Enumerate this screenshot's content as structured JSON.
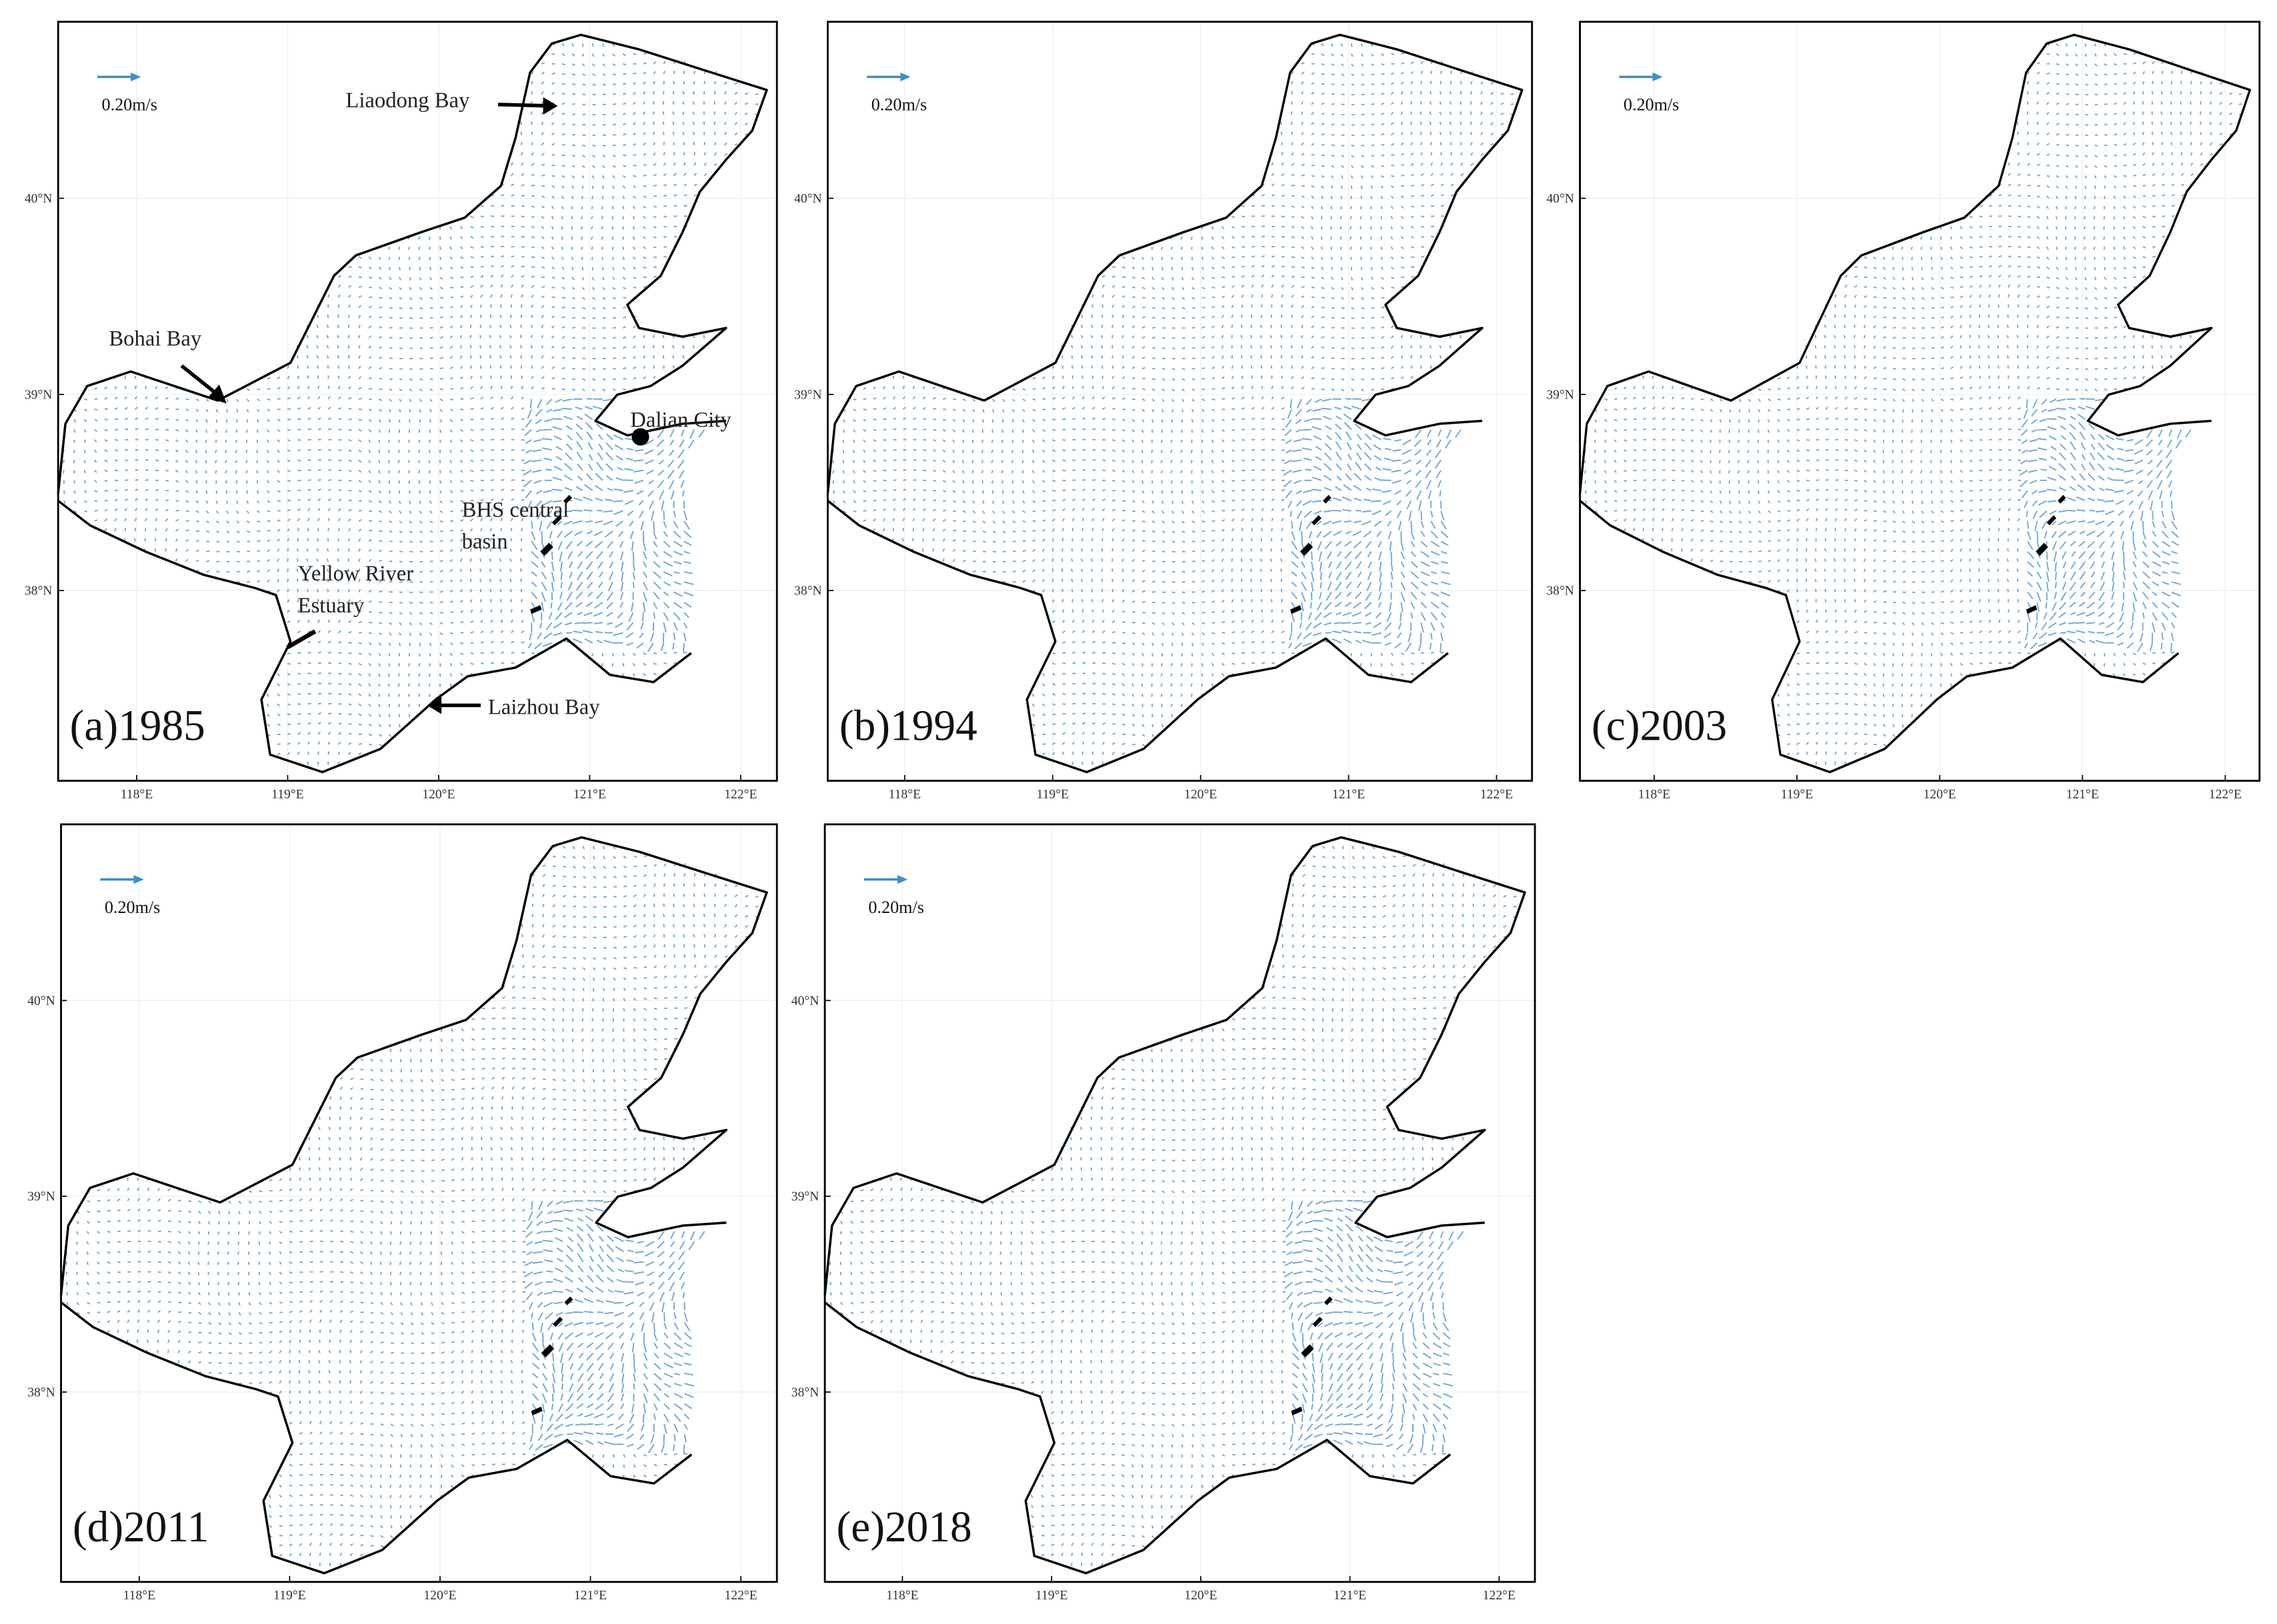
{
  "panels": [
    {
      "label": "(a)1985",
      "scale": "0.20m/s"
    },
    {
      "label": "(b)1994",
      "scale": "0.20m/s"
    },
    {
      "label": "(c)2003",
      "scale": "0.20m/s"
    },
    {
      "label": "(d)2011",
      "scale": "0.20m/s"
    },
    {
      "label": "(e)2018",
      "scale": "0.20m/s"
    }
  ],
  "xticks": [
    {
      "value": 118,
      "label": "118°E"
    },
    {
      "value": 119,
      "label": "119°E"
    },
    {
      "value": 120,
      "label": "120°E"
    },
    {
      "value": 121,
      "label": "121°E"
    },
    {
      "value": 122,
      "label": "122°E"
    }
  ],
  "yticks": [
    {
      "value": 38,
      "label": "38°N"
    },
    {
      "value": 39,
      "label": "39°N"
    },
    {
      "value": 40,
      "label": "40°N"
    }
  ],
  "annotations": {
    "liaodong_bay": "Liaodong Bay",
    "bohai_bay": "Bohai Bay",
    "dalian_city": "Dalian City",
    "bhs_central_basin": [
      "BHS central",
      "basin"
    ],
    "yellow_river_estuary": [
      "Yellow River",
      "Estuary"
    ],
    "laizhou_bay": "Laizhou Bay"
  }
}
